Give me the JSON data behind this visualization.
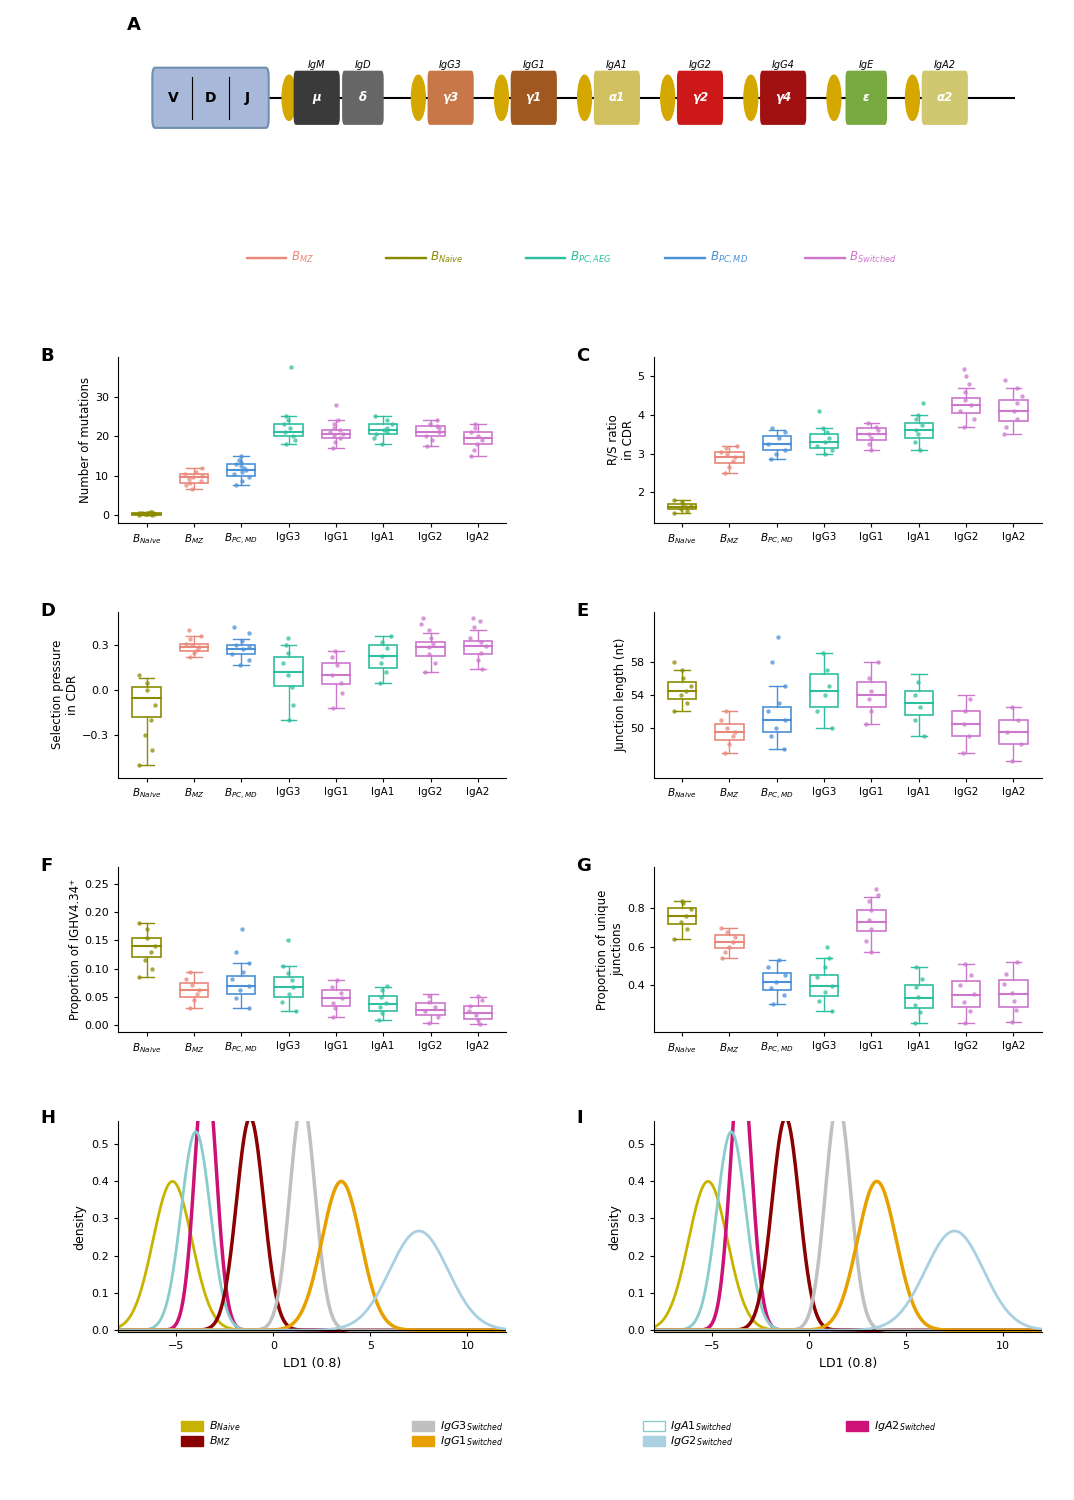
{
  "box_categories": [
    "B_Naive",
    "B_MZ",
    "B_PC_MD",
    "IgG3",
    "IgG1",
    "IgA1",
    "IgG2",
    "IgA2"
  ],
  "cat_colors": {
    "B_Naive": "#8B8B00",
    "B_MZ": "#E8887A",
    "B_PC_MD": "#4A90D9",
    "IgG3": "#2DBF9F",
    "IgG1": "#CC77CC",
    "IgA1": "#2DBF9F",
    "IgG2": "#CC77CC",
    "IgA2": "#CC77CC"
  },
  "cat_labels": {
    "B_Naive": "B_Naive",
    "B_MZ": "B_MZ",
    "B_PC_MD": "B_PC, MD",
    "IgG3": "IgG3",
    "IgG1": "IgG1",
    "IgA1": "IgA1",
    "IgG2": "IgG2",
    "IgA2": "IgA2"
  },
  "panel_B": {
    "ylabel": "Number of mutations",
    "ylim": [
      -2,
      40
    ],
    "yticks": [
      0,
      10,
      20,
      30
    ],
    "data": {
      "B_Naive": {
        "median": 0.3,
        "q1": 0.1,
        "q3": 0.5,
        "whislo": 0.0,
        "whishi": 0.7,
        "pts": [
          0.0,
          0.1,
          0.15,
          0.2,
          0.25,
          0.3,
          0.35,
          0.4,
          0.5,
          0.6,
          0.7,
          0.8
        ]
      },
      "B_MZ": {
        "median": 9.5,
        "q1": 8.0,
        "q3": 10.5,
        "whislo": 6.5,
        "whishi": 12.0,
        "pts": [
          6.5,
          7.5,
          8.0,
          8.5,
          9.0,
          9.5,
          10.0,
          10.5,
          11.0,
          12.0
        ]
      },
      "B_PC_MD": {
        "median": 11.5,
        "q1": 10.0,
        "q3": 13.0,
        "whislo": 7.5,
        "whishi": 15.0,
        "pts": [
          7.5,
          8.5,
          9.5,
          10.5,
          11.0,
          11.5,
          12.0,
          12.5,
          13.0,
          13.5,
          14.0,
          15.0
        ]
      },
      "IgG3": {
        "median": 21.0,
        "q1": 20.0,
        "q3": 23.0,
        "whislo": 18.0,
        "whishi": 25.0,
        "pts": [
          18.0,
          19.0,
          20.0,
          21.0,
          22.0,
          23.0,
          24.0,
          25.0,
          37.5
        ]
      },
      "IgG1": {
        "median": 20.5,
        "q1": 19.5,
        "q3": 21.5,
        "whislo": 17.0,
        "whishi": 24.0,
        "pts": [
          17.0,
          18.5,
          19.5,
          20.0,
          20.5,
          21.0,
          21.5,
          22.0,
          23.0,
          24.0,
          28.0
        ]
      },
      "IgA1": {
        "median": 21.5,
        "q1": 20.5,
        "q3": 23.0,
        "whislo": 18.0,
        "whishi": 25.0,
        "pts": [
          18.0,
          19.5,
          20.5,
          21.0,
          21.5,
          22.0,
          23.0,
          24.0,
          25.0
        ]
      },
      "IgG2": {
        "median": 21.0,
        "q1": 20.0,
        "q3": 22.5,
        "whislo": 17.5,
        "whishi": 24.0,
        "pts": [
          17.5,
          19.0,
          20.0,
          21.0,
          22.0,
          22.5,
          23.0,
          24.0
        ]
      },
      "IgA2": {
        "median": 19.5,
        "q1": 18.0,
        "q3": 21.0,
        "whislo": 15.0,
        "whishi": 23.0,
        "pts": [
          15.0,
          16.5,
          18.0,
          19.0,
          20.0,
          21.0,
          22.0,
          23.0
        ]
      }
    }
  },
  "panel_C": {
    "ylabel": "R/S ratio\nin CDR",
    "ylim": [
      1.2,
      5.5
    ],
    "yticks": [
      2,
      3,
      4,
      5
    ],
    "data": {
      "B_Naive": {
        "median": 1.62,
        "q1": 1.55,
        "q3": 1.7,
        "whislo": 1.45,
        "whishi": 1.8,
        "pts": [
          1.45,
          1.5,
          1.55,
          1.6,
          1.65,
          1.7,
          1.75,
          1.8
        ]
      },
      "B_MZ": {
        "median": 2.9,
        "q1": 2.75,
        "q3": 3.05,
        "whislo": 2.5,
        "whishi": 3.2,
        "pts": [
          2.5,
          2.65,
          2.8,
          2.9,
          3.0,
          3.05,
          3.15,
          3.2
        ]
      },
      "B_PC_MD": {
        "median": 3.25,
        "q1": 3.1,
        "q3": 3.45,
        "whislo": 2.85,
        "whishi": 3.6,
        "pts": [
          2.85,
          3.0,
          3.1,
          3.25,
          3.4,
          3.55,
          3.65
        ]
      },
      "IgG3": {
        "median": 3.3,
        "q1": 3.15,
        "q3": 3.5,
        "whislo": 3.0,
        "whishi": 3.65,
        "pts": [
          3.0,
          3.1,
          3.2,
          3.3,
          3.4,
          3.55,
          3.65,
          4.1
        ]
      },
      "IgG1": {
        "median": 3.5,
        "q1": 3.35,
        "q3": 3.65,
        "whislo": 3.1,
        "whishi": 3.8,
        "pts": [
          3.1,
          3.25,
          3.4,
          3.5,
          3.6,
          3.7,
          3.8
        ]
      },
      "IgA1": {
        "median": 3.6,
        "q1": 3.4,
        "q3": 3.8,
        "whislo": 3.1,
        "whishi": 4.0,
        "pts": [
          3.1,
          3.3,
          3.5,
          3.6,
          3.75,
          3.9,
          4.0,
          4.3
        ]
      },
      "IgG2": {
        "median": 4.25,
        "q1": 4.05,
        "q3": 4.45,
        "whislo": 3.7,
        "whishi": 4.7,
        "pts": [
          3.7,
          3.9,
          4.1,
          4.25,
          4.4,
          4.6,
          4.8,
          5.0,
          5.2
        ]
      },
      "IgA2": {
        "median": 4.1,
        "q1": 3.85,
        "q3": 4.4,
        "whislo": 3.5,
        "whishi": 4.7,
        "pts": [
          3.5,
          3.7,
          3.9,
          4.1,
          4.3,
          4.5,
          4.7,
          4.9
        ]
      }
    }
  },
  "panel_D": {
    "ylabel": "Selection pressure\nin CDR",
    "ylim": [
      -0.58,
      0.52
    ],
    "yticks": [
      -0.3,
      0.0,
      0.3
    ],
    "data": {
      "B_Naive": {
        "median": -0.05,
        "q1": -0.18,
        "q3": 0.02,
        "whislo": -0.5,
        "whishi": 0.08,
        "pts": [
          -0.5,
          -0.4,
          -0.3,
          -0.2,
          -0.1,
          0.0,
          0.05,
          0.1
        ]
      },
      "B_MZ": {
        "median": 0.285,
        "q1": 0.26,
        "q3": 0.31,
        "whislo": 0.22,
        "whishi": 0.36,
        "pts": [
          0.22,
          0.25,
          0.27,
          0.285,
          0.3,
          0.31,
          0.34,
          0.36,
          0.4
        ]
      },
      "B_PC_MD": {
        "median": 0.275,
        "q1": 0.24,
        "q3": 0.3,
        "whislo": 0.17,
        "whishi": 0.34,
        "pts": [
          0.17,
          0.2,
          0.24,
          0.275,
          0.29,
          0.3,
          0.33,
          0.38,
          0.42
        ]
      },
      "IgG3": {
        "median": 0.12,
        "q1": 0.03,
        "q3": 0.22,
        "whislo": -0.2,
        "whishi": 0.3,
        "pts": [
          -0.2,
          -0.1,
          0.02,
          0.1,
          0.18,
          0.25,
          0.3,
          0.35
        ]
      },
      "IgG1": {
        "median": 0.1,
        "q1": 0.04,
        "q3": 0.18,
        "whislo": -0.12,
        "whishi": 0.26,
        "pts": [
          -0.12,
          -0.02,
          0.05,
          0.1,
          0.17,
          0.22,
          0.26
        ]
      },
      "IgA1": {
        "median": 0.23,
        "q1": 0.15,
        "q3": 0.3,
        "whislo": 0.05,
        "whishi": 0.36,
        "pts": [
          0.05,
          0.12,
          0.18,
          0.23,
          0.28,
          0.32,
          0.36
        ]
      },
      "IgG2": {
        "median": 0.285,
        "q1": 0.23,
        "q3": 0.32,
        "whislo": 0.12,
        "whishi": 0.38,
        "pts": [
          0.12,
          0.18,
          0.24,
          0.285,
          0.31,
          0.35,
          0.4,
          0.44,
          0.48
        ]
      },
      "IgA2": {
        "median": 0.295,
        "q1": 0.24,
        "q3": 0.33,
        "whislo": 0.14,
        "whishi": 0.4,
        "pts": [
          0.14,
          0.2,
          0.25,
          0.295,
          0.32,
          0.35,
          0.42,
          0.46,
          0.48
        ]
      }
    }
  },
  "panel_E": {
    "ylabel": "Junction length (nt)",
    "ylim": [
      44,
      64
    ],
    "yticks": [
      50,
      54,
      58
    ],
    "data": {
      "B_Naive": {
        "median": 54.5,
        "q1": 53.5,
        "q3": 55.5,
        "whislo": 52.0,
        "whishi": 57.0,
        "pts": [
          52,
          53,
          54,
          54.5,
          55,
          56,
          57,
          58
        ]
      },
      "B_MZ": {
        "median": 49.5,
        "q1": 48.5,
        "q3": 50.5,
        "whislo": 47.0,
        "whishi": 52.0,
        "pts": [
          47,
          48,
          49,
          49.5,
          50,
          51,
          52
        ]
      },
      "B_PC_MD": {
        "median": 51.0,
        "q1": 49.5,
        "q3": 52.5,
        "whislo": 47.5,
        "whishi": 55.0,
        "pts": [
          47.5,
          49,
          50,
          51,
          52,
          53,
          55,
          58,
          61
        ]
      },
      "IgG3": {
        "median": 54.5,
        "q1": 52.5,
        "q3": 56.5,
        "whislo": 50.0,
        "whishi": 59.0,
        "pts": [
          50,
          52,
          54,
          55,
          57,
          59
        ]
      },
      "IgG1": {
        "median": 54.0,
        "q1": 52.5,
        "q3": 55.5,
        "whislo": 50.5,
        "whishi": 58.0,
        "pts": [
          50.5,
          52,
          53.5,
          54.5,
          56,
          58
        ]
      },
      "IgA1": {
        "median": 53.0,
        "q1": 51.5,
        "q3": 54.5,
        "whislo": 49.0,
        "whishi": 56.5,
        "pts": [
          49,
          51,
          52.5,
          54,
          55.5
        ]
      },
      "IgG2": {
        "median": 50.5,
        "q1": 49.0,
        "q3": 52.0,
        "whislo": 47.0,
        "whishi": 54.0,
        "pts": [
          47,
          49,
          50.5,
          52,
          53.5
        ]
      },
      "IgA2": {
        "median": 49.5,
        "q1": 48.0,
        "q3": 51.0,
        "whislo": 46.0,
        "whishi": 52.5,
        "pts": [
          46,
          48,
          49.5,
          51,
          52.5
        ]
      }
    }
  },
  "panel_F": {
    "ylabel": "Proportion of IGHV4.34⁺",
    "ylim": [
      -0.012,
      0.28
    ],
    "yticks": [
      0.0,
      0.05,
      0.1,
      0.15,
      0.2,
      0.25
    ],
    "data": {
      "B_Naive": {
        "median": 0.14,
        "q1": 0.12,
        "q3": 0.155,
        "whislo": 0.085,
        "whishi": 0.18,
        "pts": [
          0.085,
          0.1,
          0.115,
          0.13,
          0.14,
          0.155,
          0.17,
          0.18
        ]
      },
      "B_MZ": {
        "median": 0.063,
        "q1": 0.05,
        "q3": 0.075,
        "whislo": 0.03,
        "whishi": 0.095,
        "pts": [
          0.03,
          0.045,
          0.055,
          0.063,
          0.072,
          0.082,
          0.095
        ]
      },
      "B_PC_MD": {
        "median": 0.07,
        "q1": 0.055,
        "q3": 0.088,
        "whislo": 0.03,
        "whishi": 0.11,
        "pts": [
          0.03,
          0.048,
          0.062,
          0.07,
          0.082,
          0.095,
          0.11,
          0.13,
          0.17
        ]
      },
      "IgG3": {
        "median": 0.068,
        "q1": 0.05,
        "q3": 0.085,
        "whislo": 0.025,
        "whishi": 0.105,
        "pts": [
          0.025,
          0.042,
          0.056,
          0.068,
          0.08,
          0.092,
          0.105,
          0.15
        ]
      },
      "IgG1": {
        "median": 0.048,
        "q1": 0.035,
        "q3": 0.062,
        "whislo": 0.015,
        "whishi": 0.08,
        "pts": [
          0.015,
          0.03,
          0.04,
          0.048,
          0.058,
          0.068,
          0.08
        ]
      },
      "IgA1": {
        "median": 0.038,
        "q1": 0.025,
        "q3": 0.052,
        "whislo": 0.01,
        "whishi": 0.068,
        "pts": [
          0.01,
          0.022,
          0.032,
          0.04,
          0.05,
          0.062,
          0.07
        ]
      },
      "IgG2": {
        "median": 0.028,
        "q1": 0.018,
        "q3": 0.04,
        "whislo": 0.005,
        "whishi": 0.055,
        "pts": [
          0.005,
          0.015,
          0.025,
          0.032,
          0.042,
          0.052
        ]
      },
      "IgA2": {
        "median": 0.022,
        "q1": 0.012,
        "q3": 0.035,
        "whislo": 0.002,
        "whishi": 0.05,
        "pts": [
          0.002,
          0.01,
          0.018,
          0.026,
          0.035,
          0.045,
          0.052
        ]
      }
    }
  },
  "panel_G": {
    "ylabel": "Proportion of unique\njunctions",
    "ylim": [
      0.15,
      1.02
    ],
    "yticks": [
      0.4,
      0.6,
      0.8
    ],
    "data": {
      "B_Naive": {
        "median": 0.76,
        "q1": 0.72,
        "q3": 0.8,
        "whislo": 0.64,
        "whishi": 0.84,
        "pts": [
          0.64,
          0.69,
          0.73,
          0.76,
          0.795,
          0.83,
          0.84
        ]
      },
      "B_MZ": {
        "median": 0.625,
        "q1": 0.59,
        "q3": 0.66,
        "whislo": 0.54,
        "whishi": 0.7,
        "pts": [
          0.54,
          0.57,
          0.6,
          0.625,
          0.65,
          0.675,
          0.7
        ]
      },
      "B_PC_MD": {
        "median": 0.415,
        "q1": 0.37,
        "q3": 0.46,
        "whislo": 0.3,
        "whishi": 0.53,
        "pts": [
          0.3,
          0.345,
          0.38,
          0.415,
          0.45,
          0.49,
          0.53
        ]
      },
      "IgG3": {
        "median": 0.395,
        "q1": 0.34,
        "q3": 0.45,
        "whislo": 0.26,
        "whishi": 0.54,
        "pts": [
          0.26,
          0.315,
          0.36,
          0.395,
          0.44,
          0.49,
          0.54,
          0.6
        ]
      },
      "IgG1": {
        "median": 0.73,
        "q1": 0.68,
        "q3": 0.79,
        "whislo": 0.57,
        "whishi": 0.86,
        "pts": [
          0.57,
          0.63,
          0.69,
          0.74,
          0.79,
          0.84,
          0.87,
          0.9
        ]
      },
      "IgA1": {
        "median": 0.33,
        "q1": 0.275,
        "q3": 0.4,
        "whislo": 0.2,
        "whishi": 0.49,
        "pts": [
          0.2,
          0.255,
          0.295,
          0.335,
          0.385,
          0.43,
          0.49
        ]
      },
      "IgG2": {
        "median": 0.345,
        "q1": 0.28,
        "q3": 0.42,
        "whislo": 0.2,
        "whishi": 0.51,
        "pts": [
          0.2,
          0.26,
          0.31,
          0.35,
          0.4,
          0.45,
          0.51
        ]
      },
      "IgA2": {
        "median": 0.35,
        "q1": 0.285,
        "q3": 0.425,
        "whislo": 0.205,
        "whishi": 0.52,
        "pts": [
          0.205,
          0.265,
          0.315,
          0.355,
          0.405,
          0.455,
          0.52
        ]
      }
    }
  },
  "kde_params_H": [
    {
      "name": "B_Naive",
      "mean": -5.2,
      "std": 1.0,
      "color": "#C8B400",
      "lw": 2.0
    },
    {
      "name": "IgA2_Switched",
      "mean": -3.5,
      "std": 0.55,
      "color": "#CC1177",
      "lw": 2.5
    },
    {
      "name": "IgA1_Switched",
      "mean": -4.0,
      "std": 0.75,
      "color": "#88CCCC",
      "lw": 2.0
    },
    {
      "name": "B_MZ",
      "mean": -1.2,
      "std": 0.7,
      "color": "#8B0000",
      "lw": 2.5
    },
    {
      "name": "IgG3_Switched",
      "mean": 1.5,
      "std": 0.65,
      "color": "#C0C0C0",
      "lw": 2.5
    },
    {
      "name": "IgG1_Switched",
      "mean": 3.5,
      "std": 1.0,
      "color": "#E8A000",
      "lw": 2.5
    },
    {
      "name": "IgG2_Switched",
      "mean": 7.5,
      "std": 1.5,
      "color": "#A8D0E0",
      "lw": 2.0
    }
  ],
  "kde_params_I": [
    {
      "name": "B_Naive",
      "mean": -5.2,
      "std": 1.0,
      "color": "#C8B400",
      "lw": 2.0
    },
    {
      "name": "IgA2_Switched",
      "mean": -3.5,
      "std": 0.55,
      "color": "#CC1177",
      "lw": 2.5
    },
    {
      "name": "IgA1_Switched",
      "mean": -4.0,
      "std": 0.75,
      "color": "#88CCCC",
      "lw": 2.0
    },
    {
      "name": "B_MZ",
      "mean": -1.2,
      "std": 0.7,
      "color": "#8B0000",
      "lw": 2.5
    },
    {
      "name": "IgG3_Switched",
      "mean": 1.5,
      "std": 0.65,
      "color": "#C0C0C0",
      "lw": 2.5
    },
    {
      "name": "IgG1_Switched",
      "mean": 3.5,
      "std": 1.0,
      "color": "#E8A000",
      "lw": 2.5
    },
    {
      "name": "IgG2_Switched",
      "mean": 7.5,
      "std": 1.5,
      "color": "#A8D0E0",
      "lw": 2.0
    }
  ],
  "top_legend": [
    {
      "label": "B_MZ",
      "color": "#E8887A"
    },
    {
      "label": "B_Naive",
      "color": "#8B8B00"
    },
    {
      "label": "B_PC, AEG",
      "color": "#2DBF9F"
    },
    {
      "label": "B_PC, MD",
      "color": "#4A90D9"
    },
    {
      "label": "B_Switched",
      "color": "#CC77CC"
    }
  ],
  "bot_legend_row1": [
    {
      "label": "B_Naive",
      "color": "#C8B400",
      "filled": true
    },
    {
      "label": "IgG3_Switched",
      "color": "#C0C0C0",
      "filled": true
    },
    {
      "label": "IgA1_Switched",
      "color": "#88CCCC",
      "filled": false
    },
    {
      "label": "IgA2_Switched",
      "color": "#CC1177",
      "filled": true
    }
  ],
  "bot_legend_row2": [
    {
      "label": "B_MZ",
      "color": "#8B0000",
      "filled": true
    },
    {
      "label": "IgG1_Switched",
      "color": "#E8A000",
      "filled": true
    },
    {
      "label": "IgG2_Switched",
      "color": "#A8D0E0",
      "filled": true
    }
  ]
}
